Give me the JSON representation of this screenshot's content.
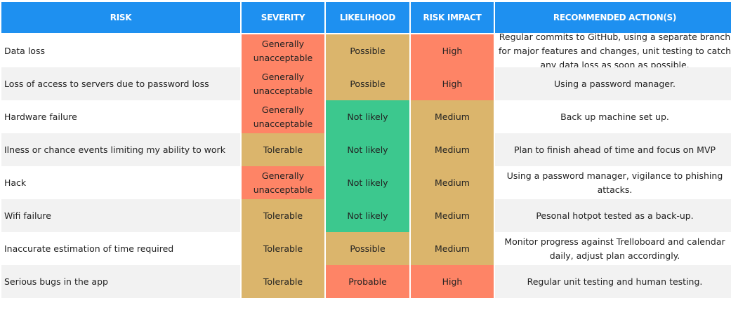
{
  "colors": {
    "header": "#1e90f0",
    "red": "#fe8466",
    "tan": "#dbb56c",
    "green": "#3cc88e"
  },
  "headers": {
    "risk": "RISK",
    "severity": "SEVERITY",
    "likelihood": "LIKELIHOOD",
    "impact": "RISK IMPACT",
    "action": "RECOMMENDED ACTION(S)"
  },
  "rows": [
    {
      "risk": "Data loss",
      "severity": "Generally unacceptable",
      "likelihood": "Possible",
      "impact": "High",
      "action": "Regular commits to GitHub, using a separate branch for major features and changes, unit testing to catch any data loss as soon as possible."
    },
    {
      "risk": "Loss of access to servers due to password loss",
      "severity": "Generally unacceptable",
      "likelihood": "Possible",
      "impact": "High",
      "action": "Using a password manager."
    },
    {
      "risk": "Hardware failure",
      "severity": "Generally unacceptable",
      "likelihood": "Not likely",
      "impact": "Medium",
      "action": "Back up machine set up."
    },
    {
      "risk": "Ilness or chance events limiting my ability to work",
      "severity": "Tolerable",
      "likelihood": "Not likely",
      "impact": "Medium",
      "action": "Plan to finish ahead of time and focus on MVP"
    },
    {
      "risk": "Hack",
      "severity": "Generally unacceptable",
      "likelihood": "Not likely",
      "impact": "Medium",
      "action": "Using a password manager, vigilance to phishing attacks."
    },
    {
      "risk": "Wifi failure",
      "severity": "Tolerable",
      "likelihood": "Not likely",
      "impact": "Medium",
      "action": "Pesonal hotpot tested as a back-up."
    },
    {
      "risk": "Inaccurate estimation of time required",
      "severity": "Tolerable",
      "likelihood": "Possible",
      "impact": "Medium",
      "action": "Monitor progress against Trelloboard and calendar daily, adjust plan accordingly."
    },
    {
      "risk": "Serious bugs in the app",
      "severity": "Tolerable",
      "likelihood": "Probable",
      "impact": "High",
      "action": "Regular unit testing and human testing."
    }
  ]
}
